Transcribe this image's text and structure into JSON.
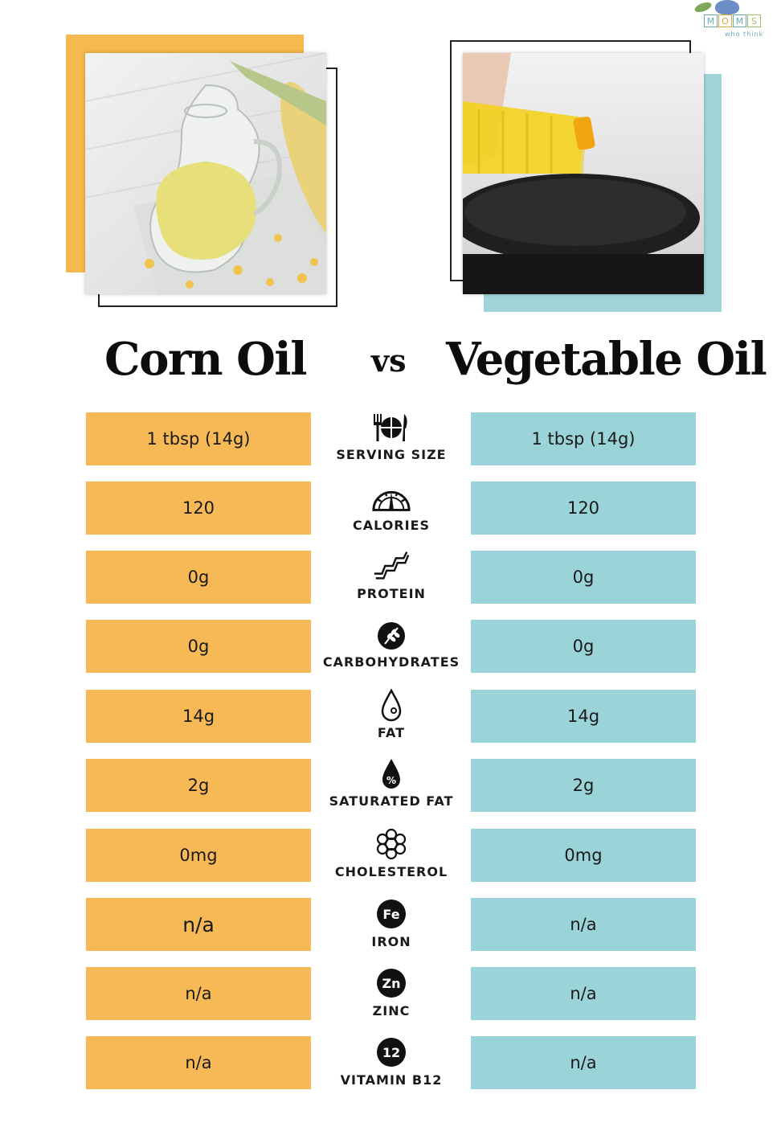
{
  "logo": {
    "letters": [
      "M",
      "O",
      "M",
      "S"
    ],
    "tagline": "who think"
  },
  "titles": {
    "left": "Corn Oil",
    "vs": "vs",
    "right": "Vegetable Oil"
  },
  "colors": {
    "corn": "#f6b955",
    "vegetable": "#9ad3d8"
  },
  "rows": [
    {
      "icon": "cutlery-plate-icon",
      "label": "SERVING SIZE",
      "corn": "1 tbsp (14g)",
      "vegetable": "1 tbsp (14g)"
    },
    {
      "icon": "gauge-icon",
      "label": "CALORIES",
      "corn": "120",
      "vegetable": "120"
    },
    {
      "icon": "protein-chain-icon",
      "label": "PROTEIN",
      "corn": "0g",
      "vegetable": "0g"
    },
    {
      "icon": "wheat-icon",
      "label": "CARBOHYDRATES",
      "corn": "0g",
      "vegetable": "0g"
    },
    {
      "icon": "drop-icon",
      "label": "FAT",
      "corn": "14g",
      "vegetable": "14g"
    },
    {
      "icon": "drop-percent-icon",
      "label": "SATURATED FAT",
      "corn": "2g",
      "vegetable": "2g"
    },
    {
      "icon": "cholesterol-icon",
      "label": "CHOLESTEROL",
      "corn": "0mg",
      "vegetable": "0mg"
    },
    {
      "icon": "iron-icon",
      "badge": "Fe",
      "label": "IRON",
      "corn": "n/a",
      "vegetable": "n/a"
    },
    {
      "icon": "zinc-icon",
      "badge": "Zn",
      "label": "ZINC",
      "corn": "n/a",
      "vegetable": "n/a"
    },
    {
      "icon": "vitamin-b12-icon",
      "badge": "12",
      "label": "VITAMIN B12",
      "corn": "n/a",
      "vegetable": "n/a"
    }
  ]
}
